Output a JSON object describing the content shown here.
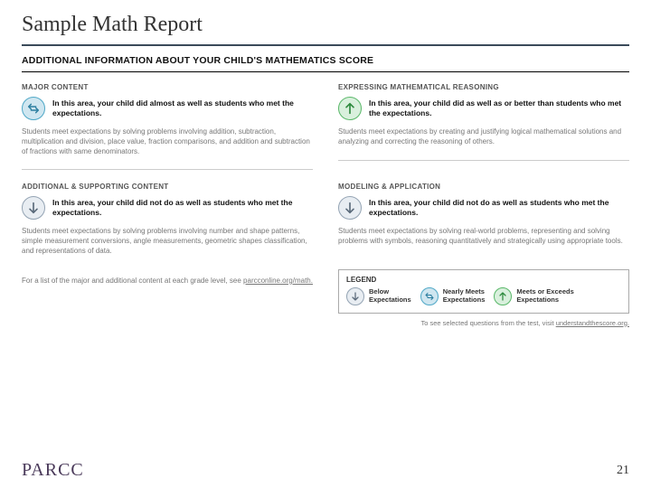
{
  "colors": {
    "title_rule": "#3a4a5a",
    "icon_down_fill": "#e8edf2",
    "icon_down_stroke": "#93a3b3",
    "icon_down_arrow": "#5a6a7a",
    "icon_sw_fill": "#cfe6f0",
    "icon_sw_stroke": "#4fa8c7",
    "icon_sw_arrow": "#2d7fa0",
    "icon_up_fill": "#d9f0dd",
    "icon_up_stroke": "#58b768",
    "icon_up_arrow": "#2e8a3e",
    "brand": "#4a3a5a"
  },
  "fontsize": {
    "slide_title": 24,
    "report_title": 10.5,
    "sec_head": 8,
    "perf_text": 8.5,
    "desc": 8,
    "legend_label": 7.5,
    "pagenum": 14,
    "brand": 20
  },
  "slide_title": "Sample Math Report",
  "report_title": "ADDITIONAL INFORMATION ABOUT YOUR CHILD'S MATHEMATICS SCORE",
  "sections": {
    "major": {
      "head": "MAJOR CONTENT",
      "perf_icon": "swap",
      "perf_text": "In this area, your child did almost as well as students who met the expectations.",
      "desc": "Students meet expectations by solving problems involving addition, subtraction, multiplication and division, place value, fraction comparisons, and addition and subtraction of fractions with same denominators."
    },
    "reasoning": {
      "head": "EXPRESSING MATHEMATICAL REASONING",
      "perf_icon": "up",
      "perf_text": "In this area, your child did as well as or better than students who met the expectations.",
      "desc": "Students meet expectations by creating and justifying logical mathematical solutions and analyzing and correcting the reasoning of others."
    },
    "additional": {
      "head": "ADDITIONAL & SUPPORTING CONTENT",
      "perf_icon": "down",
      "perf_text": "In this area, your child did not do as well as students who met the expectations.",
      "desc": "Students meet expectations by solving problems involving number and shape patterns, simple measurement conversions, angle measurements, geometric shapes classification, and representations of data."
    },
    "modeling": {
      "head": "MODELING & APPLICATION",
      "perf_icon": "down",
      "perf_text": "In this area, your child did not do as well as students who met the expectations.",
      "desc": "Students meet expectations by solving real-world problems, representing and solving problems with symbols, reasoning quantitatively and strategically using appropriate tools."
    }
  },
  "footnote_lead": "For a list of the major and additional content at each grade level, see ",
  "footnote_link": "parcconline.org/math.",
  "legend": {
    "title": "LEGEND",
    "items": {
      "below": {
        "icon": "down",
        "label_l1": "Below",
        "label_l2": "Expectations"
      },
      "nearly": {
        "icon": "swap",
        "label_l1": "Nearly Meets",
        "label_l2": "Expectations"
      },
      "meets": {
        "icon": "up",
        "label_l1": "Meets or Exceeds",
        "label_l2": "Expectations"
      }
    },
    "note_lead": "To see selected questions from the test, visit ",
    "note_link": "understandthescore.org."
  },
  "brand": "PARCC",
  "pagenum": "21"
}
